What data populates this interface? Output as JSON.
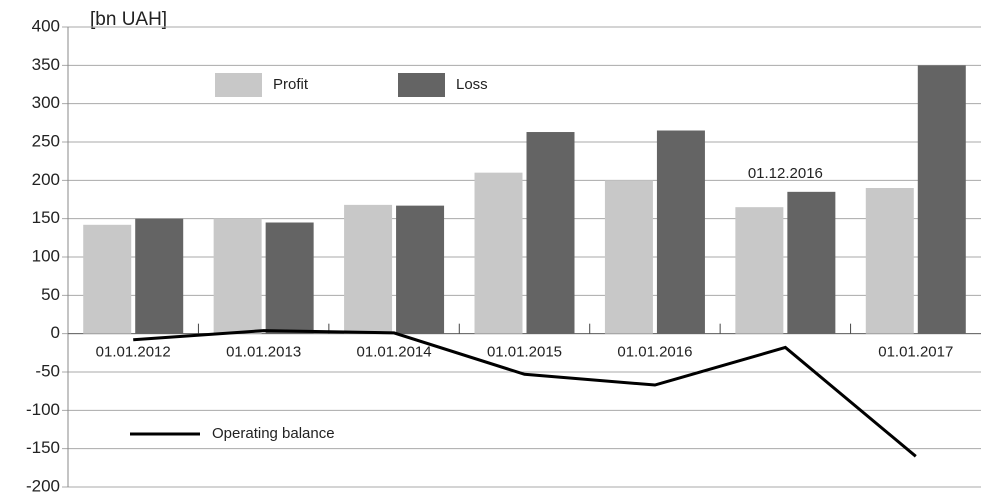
{
  "chart_data": {
    "type": "bar",
    "y_label": "[bn UAH]",
    "categories": [
      "01.01.2012",
      "01.01.2013",
      "01.01.2014",
      "01.01.2015",
      "01.01.2016",
      "01.12.2016",
      "01.01.2017"
    ],
    "series": [
      {
        "name": "Profit",
        "color": "#c8c8c8",
        "values": [
          142,
          150,
          168,
          210,
          200,
          165,
          190
        ]
      },
      {
        "name": "Loss",
        "color": "#646464",
        "values": [
          150,
          145,
          167,
          263,
          265,
          185,
          350
        ]
      },
      {
        "name": "Operating balance",
        "type": "line",
        "color": "#000000",
        "values": [
          -8,
          4,
          1,
          -53,
          -67,
          -18,
          -160
        ]
      }
    ],
    "ylim": [
      -200,
      400
    ],
    "yticks": [
      -200,
      -150,
      -100,
      -50,
      0,
      50,
      100,
      150,
      200,
      250,
      300,
      350,
      400
    ],
    "grid": true
  }
}
